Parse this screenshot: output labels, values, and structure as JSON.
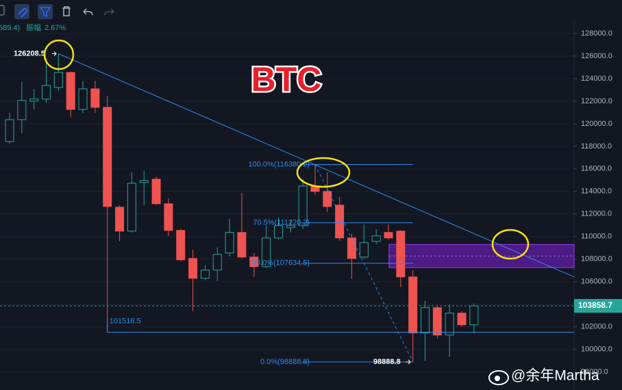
{
  "header": {
    "fragment": "589.4)",
    "amplitude_label": "振幅",
    "amplitude": "2.67%"
  },
  "watermark": "@余年Martha",
  "chart_data": {
    "type": "candlestick",
    "title": "BTC",
    "colors": {
      "up": "#26a69a",
      "down": "#ef5350",
      "line": "#2f8cf0",
      "zone": "#7b1fd6"
    },
    "open": [
      118425,
      120364,
      122000,
      122182,
      123212,
      124546,
      121273,
      123091,
      121455,
      112606,
      110485,
      114788,
      115091,
      112909,
      110546,
      108061,
      106303,
      107030,
      108546,
      110364,
      108182,
      107334,
      109879,
      110788,
      110970,
      114485,
      114000,
      112788,
      109879,
      108182,
      109576,
      110364,
      110485,
      106424,
      101455,
      103697,
      101273,
      103212,
      102182
    ],
    "high": [
      120970,
      123697,
      123091,
      125818,
      126208.5,
      124606,
      123818,
      123818,
      122485,
      112788,
      115697,
      115818,
      115333,
      113394,
      110667,
      108849,
      107455,
      109030,
      111576,
      113879,
      108546,
      110970,
      111697,
      111455,
      115091,
      116380.2,
      115697,
      113515,
      110243,
      111091,
      110667,
      111091,
      110546,
      107030,
      104303,
      103879,
      104000,
      103394,
      104061
    ],
    "low": [
      118243,
      119152,
      121273,
      121879,
      122909,
      120546,
      120970,
      120970,
      101516.5,
      109576,
      110364,
      112788,
      112788,
      110061,
      107818,
      103394,
      106121,
      106061,
      108243,
      108061,
      106424,
      107213,
      109758,
      110364,
      110667,
      113697,
      112182,
      109636,
      106243,
      108061,
      109334,
      109758,
      105515,
      98888.8,
      98970,
      100970,
      99334,
      102000,
      101394
    ],
    "close": [
      120364,
      122061,
      122200,
      123394,
      124546,
      121273,
      123091,
      121455,
      112667,
      110485,
      114727,
      114970,
      112909,
      110546,
      107940,
      106303,
      107030,
      108424,
      110364,
      108182,
      107334,
      109879,
      110970,
      110970,
      114485,
      114000,
      112667,
      109879,
      108061,
      109455,
      110061,
      109879,
      106424,
      101455,
      103697,
      101273,
      103212,
      102182,
      103858.7
    ],
    "ylim": [
      96400,
      129150
    ],
    "yticks": [
      {
        "value": 98000,
        "label": "98000.0"
      },
      {
        "value": 100000,
        "label": "100000.0"
      },
      {
        "value": 102000,
        "label": "102000.0"
      },
      {
        "value": 104000,
        "label": "104000.0"
      },
      {
        "value": 106000,
        "label": "106000.0"
      },
      {
        "value": 108000,
        "label": "108000.0"
      },
      {
        "value": 110000,
        "label": "110000.0"
      },
      {
        "value": 112000,
        "label": "112000.0"
      },
      {
        "value": 114000,
        "label": "114000.0"
      },
      {
        "value": 116000,
        "label": "116000.0"
      },
      {
        "value": 118000,
        "label": "118000.0"
      },
      {
        "value": 120000,
        "label": "120000.0"
      },
      {
        "value": 122000,
        "label": "122000.0"
      },
      {
        "value": 124000,
        "label": "124000.0"
      },
      {
        "value": 126000,
        "label": "126000.0"
      },
      {
        "value": 128000,
        "label": "128000.0"
      }
    ],
    "grid": true,
    "last_price": 103858.7,
    "trendline": [
      126208.5,
      106424
    ],
    "support": 101516.5,
    "zone": [
      107250,
      109300
    ],
    "fib": [
      {
        "value": 116380.2,
        "label": "100.0%(116380.2)"
      },
      {
        "value": 111220.2,
        "label": "70.5%(111220.2)"
      },
      {
        "value": 107634.5,
        "label": "50.0%(107634.5)"
      },
      {
        "value": 98888.8,
        "label": "0.0%(98888.8)"
      }
    ],
    "annotations": {
      "high": 126208.5,
      "support": 101516.5,
      "low": 98888.8
    }
  }
}
